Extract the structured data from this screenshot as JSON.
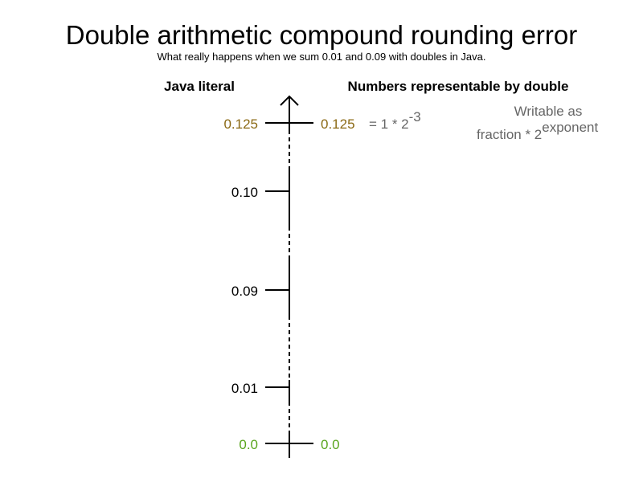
{
  "title": "Double arithmetic compound rounding error",
  "subtitle": "What really happens when we sum 0.01 and 0.09 with doubles in Java.",
  "headers": {
    "left": "Java literal",
    "right": "Numbers representable by double"
  },
  "colors": {
    "text": "#000000",
    "gray": "#666666",
    "brown": "#8b6914",
    "green": "#5aa51e"
  },
  "literals": [
    {
      "label": "0.125",
      "color": "#8b6914"
    },
    {
      "label": "0.10",
      "color": "#000000"
    },
    {
      "label": "0.09",
      "color": "#000000"
    },
    {
      "label": "0.01",
      "color": "#000000"
    },
    {
      "label": "0.0",
      "color": "#5aa51e"
    }
  ],
  "representable": [
    {
      "label": "0.125",
      "color": "#8b6914",
      "equation": "= 1 * 2",
      "exponent": "-3"
    },
    {
      "label": "0.0",
      "color": "#5aa51e"
    }
  ],
  "note": {
    "line1": "Writable as",
    "line2": "fraction * 2",
    "superscript": "exponent"
  }
}
